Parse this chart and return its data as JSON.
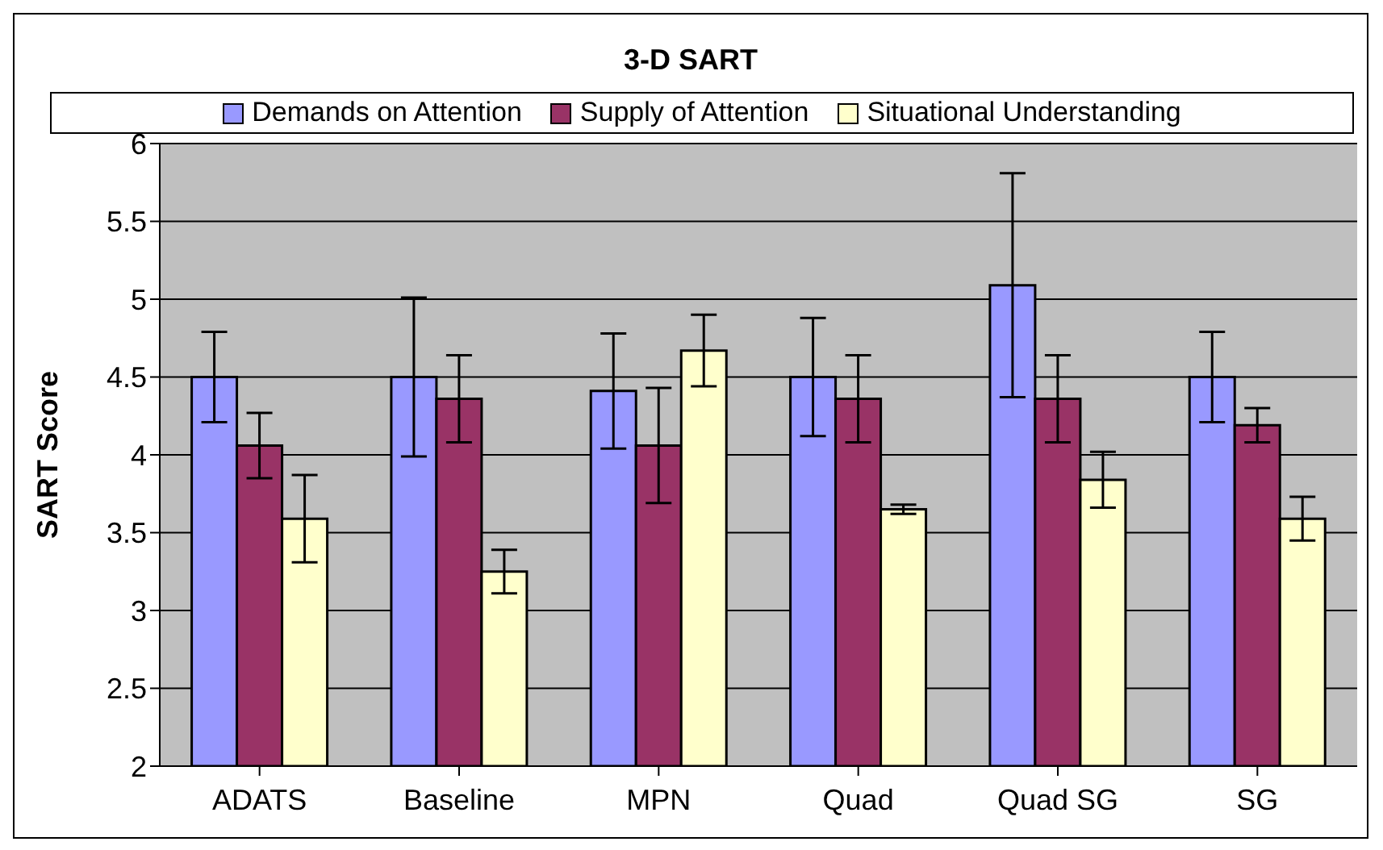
{
  "chart_data": {
    "type": "bar",
    "title": "3-D SART",
    "ylabel": "SART Score",
    "categories": [
      "ADATS",
      "Baseline",
      "MPN",
      "Quad",
      "Quad SG",
      "SG"
    ],
    "series": [
      {
        "name": "Demands on Attention",
        "color": "#9999ff",
        "values": [
          4.5,
          4.5,
          4.41,
          4.5,
          5.09,
          4.5
        ],
        "errors": [
          0.29,
          0.51,
          0.37,
          0.38,
          0.72,
          0.29
        ]
      },
      {
        "name": "Supply of Attention",
        "color": "#993366",
        "values": [
          4.06,
          4.36,
          4.06,
          4.36,
          4.36,
          4.19
        ],
        "errors": [
          0.21,
          0.28,
          0.37,
          0.28,
          0.28,
          0.11
        ]
      },
      {
        "name": "Situational Understanding",
        "color": "#ffffcc",
        "values": [
          3.59,
          3.25,
          4.67,
          3.65,
          3.84,
          3.59
        ],
        "errors": [
          0.28,
          0.14,
          0.23,
          0.03,
          0.18,
          0.14
        ]
      }
    ],
    "ylim": [
      2,
      6
    ],
    "yticks": [
      2,
      2.5,
      3,
      3.5,
      4,
      4.5,
      5,
      5.5,
      6
    ],
    "grid": "y",
    "legend": "top"
  }
}
